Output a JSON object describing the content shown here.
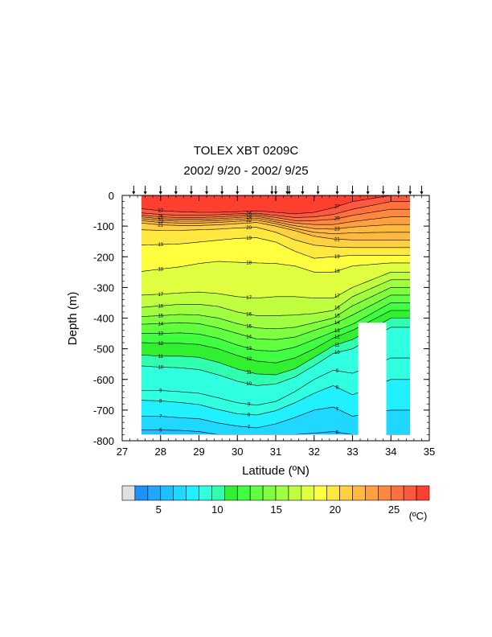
{
  "chart_data": {
    "type": "heatmap",
    "title": "TOLEX XBT 0209C",
    "subtitle": "2002/ 9/20 - 2002/ 9/25",
    "xlabel": "Latitude (ºN)",
    "ylabel": "Depth (m)",
    "xlim": [
      27,
      35
    ],
    "ylim": [
      -800,
      0
    ],
    "x_ticks": [
      "27",
      "28",
      "29",
      "30",
      "31",
      "32",
      "33",
      "34",
      "35"
    ],
    "y_ticks": [
      "0",
      "-100",
      "-200",
      "-300",
      "-400",
      "-500",
      "-600",
      "-700",
      "-800"
    ],
    "colorbar_unit": "(ºC)",
    "colorbar_ticks": [
      "5",
      "10",
      "15",
      "20",
      "25"
    ],
    "colorbar_values": [
      5,
      10,
      15,
      20,
      25
    ],
    "colorbar_range": [
      3,
      28
    ],
    "colorbar_colors": [
      "#e0e0e0",
      "#1e90ff",
      "#20a8ff",
      "#20c0ff",
      "#20d8ff",
      "#20f0ff",
      "#30ffe0",
      "#30ffb0",
      "#30f030",
      "#40ff40",
      "#60ff40",
      "#80ff40",
      "#a0ff40",
      "#c0ff40",
      "#e0ff40",
      "#ffff40",
      "#ffe840",
      "#ffd040",
      "#ffb840",
      "#ffa040",
      "#ff8840",
      "#ff7040",
      "#ff5840",
      "#ff4030"
    ],
    "cast_latitudes": [
      27.3,
      27.6,
      28.0,
      28.4,
      28.8,
      29.2,
      29.6,
      30.0,
      30.4,
      30.9,
      31.0,
      31.3,
      31.35,
      31.7,
      32.1,
      32.6,
      33.0,
      33.4,
      33.8,
      34.2,
      34.5,
      34.8
    ],
    "data_lat_range": [
      27.5,
      34.5
    ],
    "data_depth_range": [
      0,
      -780
    ],
    "land_patches": [
      {
        "lat_range": [
          33.15,
          33.88
        ],
        "depth_range": [
          -415,
          -800
        ]
      },
      {
        "lat_range": [
          27.0,
          27.5
        ],
        "depth_range": [
          0,
          -800
        ]
      }
    ],
    "isotherms": [
      {
        "label": "27",
        "depth": [
          -43,
          -50,
          -53,
          -55,
          -55,
          -53,
          -50,
          -55,
          -60,
          -55,
          -40,
          -20,
          0
        ]
      },
      {
        "label": "26",
        "depth": [
          -57,
          -62,
          -65,
          -65,
          -63,
          -60,
          -58,
          -65,
          -72,
          -70,
          -62,
          -45,
          -20
        ]
      },
      {
        "label": "25",
        "depth": [
          -64,
          -70,
          -72,
          -72,
          -70,
          -66,
          -63,
          -72,
          -82,
          -82,
          -78,
          -65,
          -45
        ]
      },
      {
        "label": "24",
        "depth": [
          -70,
          -76,
          -78,
          -78,
          -76,
          -72,
          -68,
          -80,
          -90,
          -95,
          -95,
          -85,
          -70
        ]
      },
      {
        "label": "23",
        "depth": [
          -76,
          -82,
          -84,
          -84,
          -82,
          -78,
          -74,
          -86,
          -99,
          -108,
          -110,
          -103,
          -95
        ]
      },
      {
        "label": "22",
        "depth": [
          -82,
          -88,
          -90,
          -90,
          -88,
          -84,
          -80,
          -92,
          -107,
          -120,
          -125,
          -122,
          -120
        ]
      },
      {
        "label": "21",
        "depth": [
          -90,
          -96,
          -98,
          -98,
          -96,
          -92,
          -88,
          -100,
          -115,
          -133,
          -142,
          -145,
          -145
        ]
      },
      {
        "label": "20",
        "depth": [
          -112,
          -114,
          -114,
          -112,
          -110,
          -106,
          -104,
          -120,
          -145,
          -162,
          -168,
          -170,
          -170
        ]
      },
      {
        "label": "19",
        "depth": [
          -162,
          -160,
          -158,
          -152,
          -146,
          -140,
          -138,
          -152,
          -182,
          -205,
          -200,
          -195,
          -195
        ]
      },
      {
        "label": "18",
        "depth": [
          -248,
          -240,
          -233,
          -222,
          -215,
          -218,
          -220,
          -222,
          -230,
          -250,
          -250,
          -230,
          -220
        ]
      },
      {
        "label": "17",
        "depth": [
          -325,
          -322,
          -318,
          -315,
          -320,
          -330,
          -335,
          -330,
          -330,
          -335,
          -335,
          -300,
          -250
        ]
      },
      {
        "label": "16",
        "depth": [
          -365,
          -360,
          -355,
          -355,
          -362,
          -380,
          -392,
          -392,
          -390,
          -385,
          -375,
          -330,
          -275
        ]
      },
      {
        "label": "15",
        "depth": [
          -395,
          -392,
          -388,
          -390,
          -400,
          -418,
          -432,
          -435,
          -430,
          -415,
          -400,
          -360,
          -300
        ]
      },
      {
        "label": "14",
        "depth": [
          -420,
          -418,
          -415,
          -418,
          -432,
          -450,
          -468,
          -470,
          -462,
          -440,
          -420,
          -390,
          -325
        ]
      },
      {
        "label": "13",
        "depth": [
          -450,
          -450,
          -448,
          -452,
          -466,
          -488,
          -505,
          -508,
          -495,
          -470,
          -445,
          -420,
          -350
        ]
      },
      {
        "label": "12",
        "depth": [
          -480,
          -482,
          -482,
          -486,
          -500,
          -522,
          -540,
          -546,
          -530,
          -500,
          -465,
          -440,
          -375
        ]
      },
      {
        "label": "11",
        "depth": [
          -520,
          -524,
          -524,
          -528,
          -544,
          -566,
          -582,
          -585,
          -565,
          -528,
          -490,
          -470,
          -400
        ]
      },
      {
        "label": "10",
        "depth": [
          -556,
          -560,
          -562,
          -568,
          -585,
          -606,
          -620,
          -615,
          -592,
          -555,
          -515,
          -500,
          -430
        ]
      },
      {
        "label": "9",
        "depth": [
          -636,
          -636,
          -640,
          -645,
          -660,
          -676,
          -684,
          -672,
          -640,
          -600,
          -570,
          -580,
          -530
        ]
      },
      {
        "label": "8",
        "depth": [
          -668,
          -670,
          -675,
          -682,
          -698,
          -712,
          -716,
          -702,
          -676,
          -645,
          -620,
          -650,
          -600
        ]
      },
      {
        "label": "7",
        "depth": [
          -720,
          -720,
          -725,
          -728,
          -742,
          -752,
          -758,
          -745,
          -724,
          -700,
          -690,
          -720,
          -700
        ]
      },
      {
        "label": "6",
        "depth": [
          -765,
          -765,
          -766,
          -770,
          -780,
          -790,
          -795,
          -790,
          -780,
          -775,
          -770,
          -780,
          -780
        ]
      }
    ],
    "isotherm_lats": [
      27.5,
      28.0,
      28.5,
      29.0,
      29.5,
      30.0,
      30.5,
      31.0,
      31.5,
      32.0,
      32.5,
      33.0,
      34.0
    ]
  }
}
